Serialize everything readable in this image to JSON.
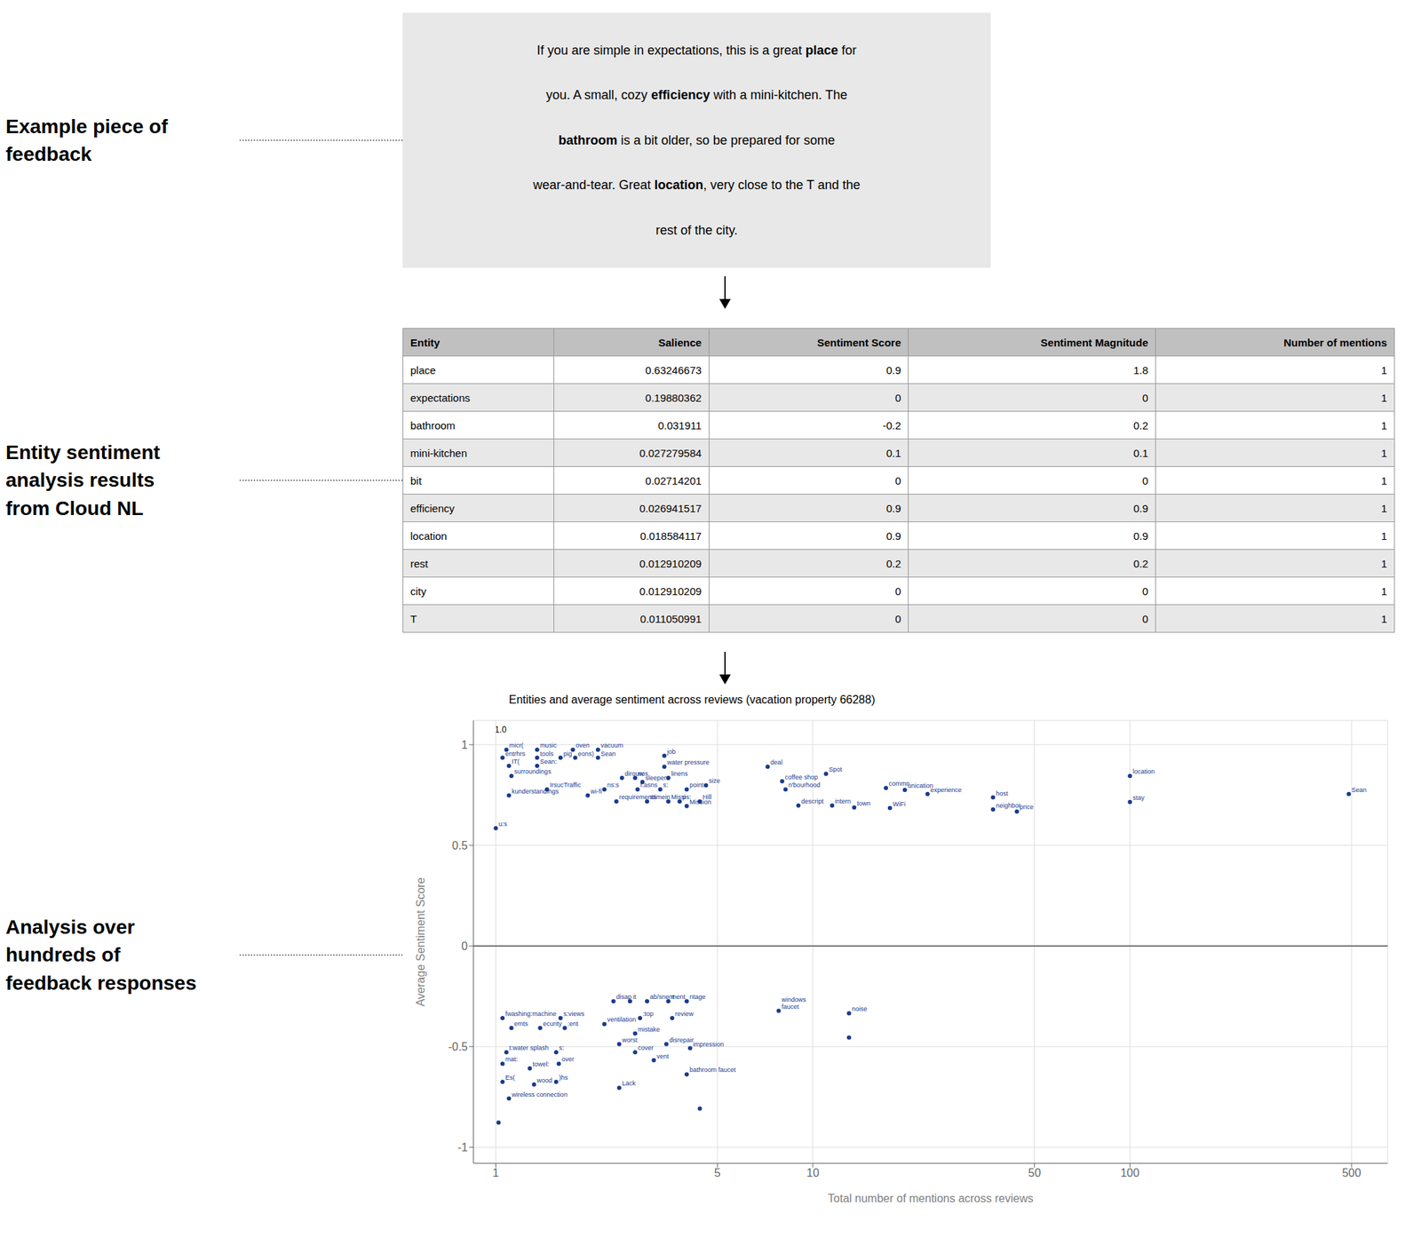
{
  "chart_data": [
    {
      "type": "text",
      "title": "Example piece of\nfeedback",
      "color": "#e8e8e8",
      "lines": [
        [
          {
            "text": "If you are simple in expectations, this is a great ",
            "bold": false
          },
          {
            "text": "place",
            "bold": true
          },
          {
            "text": " for",
            "bold": false
          }
        ],
        [
          {
            "text": "you. A small, cozy ",
            "bold": false
          },
          {
            "text": "efficiency",
            "bold": true
          },
          {
            "text": " with a mini-kitchen. The",
            "bold": false
          }
        ],
        [
          {
            "text": "bathroom",
            "bold": true
          },
          {
            "text": " is a bit older, so be prepared for some",
            "bold": false
          }
        ],
        [
          {
            "text": "wear-and-tear. Great ",
            "bold": false
          },
          {
            "text": "location",
            "bold": true
          },
          {
            "text": ", very close to the T and the",
            "bold": false
          }
        ],
        [
          {
            "text": "rest of the city.",
            "bold": false
          }
        ]
      ]
    },
    {
      "type": "table",
      "title": "Entity sentiment\nanalysis results\nfrom Cloud NL",
      "colors": [
        "#c0c0c0",
        "#ffffff",
        "#e8e8e8"
      ],
      "columns": [
        "Entity",
        "Salience",
        "Sentiment Score",
        "Sentiment Magnitude",
        "Number of mentions"
      ],
      "rows": [
        [
          "place",
          "0.63246673",
          "0.9",
          "1.8",
          "1"
        ],
        [
          "expectations",
          "0.19880362",
          "0",
          "0",
          "1"
        ],
        [
          "bathroom",
          "0.031911",
          "-0.2",
          "0.2",
          "1"
        ],
        [
          "mini-kitchen",
          "0.027279584",
          "0.1",
          "0.1",
          "1"
        ],
        [
          "bit",
          "0.02714201",
          "0",
          "0",
          "1"
        ],
        [
          "efficiency",
          "0.026941517",
          "0.9",
          "0.9",
          "1"
        ],
        [
          "location",
          "0.018584117",
          "0.9",
          "0.9",
          "1"
        ],
        [
          "rest",
          "0.012910209",
          "0.2",
          "0.2",
          "1"
        ],
        [
          "city",
          "0.012910209",
          "0",
          "0",
          "1"
        ],
        [
          "T",
          "0.011050991",
          "0",
          "0",
          "1"
        ]
      ]
    },
    {
      "type": "scatter",
      "title": "Entities and average sentiment across reviews (vacation property 66288)",
      "subtitle": "Analysis over\nhundreds of\nfeedback responses",
      "x_label": "Total number of mentions across reviews",
      "y_label": "Average Sentiment Score",
      "color": "#1a3a8c",
      "log": "x",
      "grid": true,
      "xlim": [
        0.85,
        650
      ],
      "ylim": [
        -1.08,
        1.12
      ],
      "xticks": [
        1,
        5,
        10,
        50,
        100,
        500
      ],
      "yticks": [
        -1.0,
        -0.5,
        0.0,
        0.5,
        1.0
      ],
      "annotations": [
        "1.0"
      ],
      "x": [
        1.08,
        1.35,
        1.75,
        2.1,
        1.05,
        1.35,
        1.6,
        1.78,
        2.1,
        1.1,
        1.35,
        1.12,
        3.4,
        3.4,
        7.2,
        11.0,
        100.0,
        2.5,
        2.75,
        2.9,
        3.5,
        8.0,
        17.0,
        19.5,
        23.0,
        4.6,
        8.2,
        1.45,
        2.2,
        2.8,
        3.3,
        4.0,
        37.0,
        1.1,
        1.95,
        2.4,
        3.0,
        3.5,
        3.8,
        4.4,
        9.0,
        11.5,
        13.5,
        17.5,
        37.0,
        44.0,
        100.0,
        490.0,
        1.0,
        4.0,
        2.35,
        2.65,
        3.0,
        3.5,
        4.0,
        1.05,
        1.6,
        2.85,
        3.6,
        2.2,
        1.12,
        1.38,
        1.65,
        2.75,
        2.45,
        3.45,
        1.08,
        1.55,
        2.75,
        3.15,
        4.1,
        1.05,
        1.28,
        1.58,
        4.0,
        1.05,
        1.32,
        1.55,
        2.45,
        1.1,
        1.02,
        4.4,
        7.8,
        13.0,
        13.0
      ],
      "values": [
        0.975,
        0.975,
        0.975,
        0.975,
        0.935,
        0.935,
        0.935,
        0.935,
        0.935,
        0.895,
        0.895,
        0.845,
        0.945,
        0.89,
        0.89,
        0.855,
        0.845,
        0.835,
        0.835,
        0.815,
        0.835,
        0.818,
        0.785,
        0.775,
        0.755,
        0.798,
        0.778,
        0.778,
        0.778,
        0.778,
        0.778,
        0.778,
        0.738,
        0.748,
        0.748,
        0.718,
        0.718,
        0.718,
        0.718,
        0.718,
        0.698,
        0.698,
        0.688,
        0.685,
        0.678,
        0.668,
        0.715,
        0.755,
        0.585,
        0.695,
        -0.275,
        -0.275,
        -0.275,
        -0.275,
        -0.275,
        -0.358,
        -0.358,
        -0.358,
        -0.358,
        -0.388,
        -0.408,
        -0.408,
        -0.408,
        -0.435,
        -0.488,
        -0.488,
        -0.528,
        -0.528,
        -0.528,
        -0.568,
        -0.508,
        -0.585,
        -0.608,
        -0.585,
        -0.638,
        -0.675,
        -0.688,
        -0.675,
        -0.705,
        -0.758,
        -0.878,
        -0.808,
        -0.322,
        -0.335,
        -0.455
      ],
      "labels": [
        "micr(",
        "music",
        "oven",
        "vacuum",
        "entrhrs",
        "tools",
        "pig",
        "eons)",
        "Sean",
        "IT(",
        "Sean:",
        "surroundings",
        "job",
        "water pressure",
        "deal",
        "Spot",
        "location",
        "dirouw",
        "nos",
        "sleepers",
        "linens",
        "coffee shop",
        "commn",
        "unication",
        "experience",
        "size",
        "n'bourhood",
        "IrsucTraffic",
        "ns:s",
        "f:asns",
        "s:",
        "point",
        "host",
        "kunderstandings",
        "wi-fi",
        "requirements",
        "stimein",
        "Missi",
        "ps:",
        "Hill",
        "descript",
        "intern",
        "town",
        "WiFi",
        "neighbor",
        "price",
        "stay",
        "Sean",
        "u:s",
        "Mission",
        "disap",
        "it",
        "ab/snent",
        "ment",
        "ntage",
        "fwashing:machine",
        "s:views",
        ":top",
        "review",
        "ventilation",
        "emts",
        "ecurity",
        ":ent",
        "mistake",
        "worst",
        "disrepair",
        "t:water splash",
        "s:",
        "cover",
        "vent",
        "impression",
        "mat:",
        "towel:",
        "over",
        "bathroom faucet",
        "Es(",
        "wood",
        ")hs",
        "Lack",
        "wireless connection",
        null,
        null,
        "windows\nfaucet",
        "noise",
        null
      ]
    }
  ]
}
